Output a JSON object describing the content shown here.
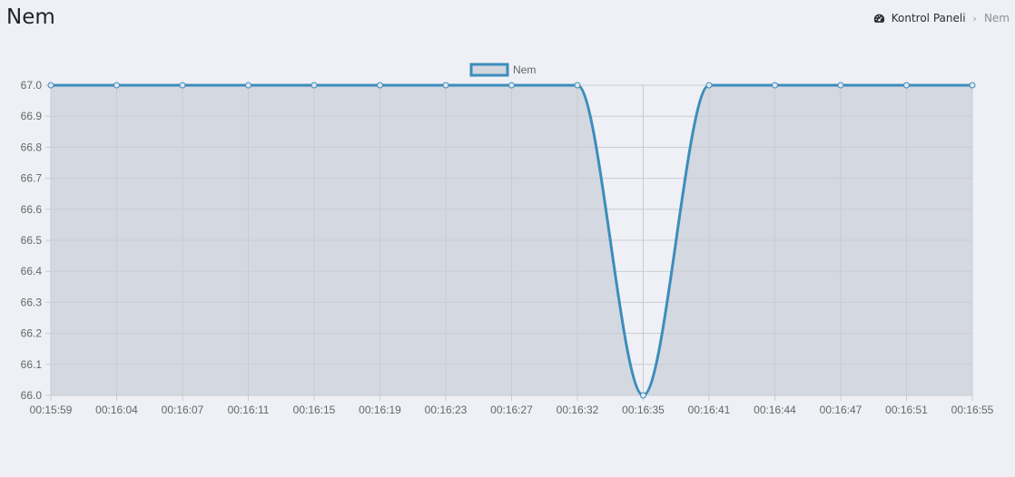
{
  "header": {
    "title": "Nem"
  },
  "breadcrumb": {
    "icon": "dashboard-icon",
    "home_label": "Kontrol Paneli",
    "separator": "›",
    "current": "Nem"
  },
  "colors": {
    "line": "#3c8dbc",
    "fill": "#d2d6de",
    "grid": "#c9ccd2",
    "background": "#eef0f5",
    "tick_text": "#666666"
  },
  "chart_data": {
    "type": "area",
    "legend": {
      "position": "top",
      "entries": [
        "Nem"
      ]
    },
    "grid": true,
    "ylim": [
      66.0,
      67.0
    ],
    "y_ticks": [
      "67.0",
      "66.9",
      "66.8",
      "66.7",
      "66.6",
      "66.5",
      "66.4",
      "66.3",
      "66.2",
      "66.1",
      "66.0"
    ],
    "x": [
      "00:15:59",
      "00:16:04",
      "00:16:07",
      "00:16:11",
      "00:16:15",
      "00:16:19",
      "00:16:23",
      "00:16:27",
      "00:16:32",
      "00:16:35",
      "00:16:41",
      "00:16:44",
      "00:16:47",
      "00:16:51",
      "00:16:55"
    ],
    "series": [
      {
        "name": "Nem",
        "values": [
          67,
          67,
          67,
          67,
          67,
          67,
          67,
          67,
          67,
          66,
          67,
          67,
          67,
          67,
          67
        ]
      }
    ],
    "xlabel": "",
    "ylabel": ""
  }
}
